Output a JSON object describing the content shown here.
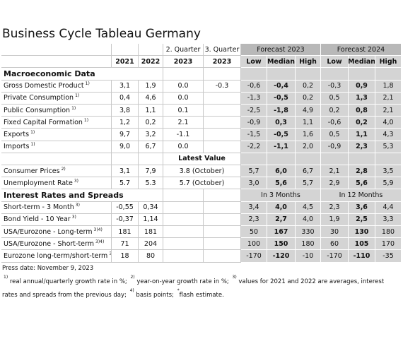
{
  "header": {
    "title": "Business Cycle Tableau Germany"
  },
  "table": {
    "column_groups": [
      "2. Quarter",
      "3. Quarter",
      "Forecast 2023",
      "Forecast 2024"
    ],
    "columns": [
      "2021",
      "2022",
      "2023",
      "2023",
      "Low",
      "Median",
      "High",
      "Low",
      "Median",
      "High"
    ],
    "sections": [
      {
        "title": "Macroeconomic Data",
        "rows": [
          {
            "label": "Gross Domestic Product",
            "note": "1)",
            "values": [
              "3,1",
              "1,9",
              "0.0",
              "-0.3"
            ],
            "forecast": [
              "-0,6",
              "-0,4",
              "0,2",
              "-0,3",
              "0,9",
              "1,8"
            ]
          },
          {
            "label": "Private Consumption",
            "note": "1)",
            "values": [
              "0,4",
              "4,6",
              "0.0",
              null
            ],
            "forecast": [
              "-1,3",
              "-0,5",
              "0,2",
              "0,5",
              "1,3",
              "2,1"
            ]
          },
          {
            "label": "Public Consumption",
            "note": "1)",
            "values": [
              "3,8",
              "1,1",
              "0.1",
              null
            ],
            "forecast": [
              "-2,5",
              "-1,8",
              "4,9",
              "0,2",
              "0,8",
              "2,1"
            ]
          },
          {
            "label": "Fixed Capital Formation",
            "note": "1)",
            "values": [
              "1,2",
              "0,2",
              "2.1",
              null
            ],
            "forecast": [
              "-0,9",
              "0,3",
              "1,1",
              "-0,6",
              "0,2",
              "4,0"
            ]
          },
          {
            "label": "Exports",
            "note": "1)",
            "values": [
              "9,7",
              "3,2",
              "-1.1",
              null
            ],
            "forecast": [
              "-1,5",
              "-0,5",
              "1,6",
              "0,5",
              "1,1",
              "4,3"
            ]
          },
          {
            "label": "Imports",
            "note": "1)",
            "values": [
              "9,0",
              "6,7",
              "0.0",
              null
            ],
            "forecast": [
              "-2,2",
              "-1,1",
              "2,0",
              "-0,9",
              "2,3",
              "5,3"
            ]
          }
        ]
      },
      {
        "title": "Latest Value",
        "rows": [
          {
            "label": "Consumer Prices",
            "note": "2)",
            "values": [
              "3,1",
              "7,9"
            ],
            "latest": "3.8 (October)",
            "forecast": [
              "5,7",
              "6,0",
              "6,7",
              "2,1",
              "2,8",
              "3,5"
            ]
          },
          {
            "label": "Unemployment Rate",
            "note": "3)",
            "values": [
              "5.7",
              "5.3"
            ],
            "latest": "5.7 (October)",
            "forecast": [
              "3,0",
              "5,6",
              "5,7",
              "2,9",
              "5,6",
              "5,9"
            ]
          }
        ]
      },
      {
        "title": "Interest Rates and Spreads",
        "forecast_headers": [
          "In 3 Months",
          "In 12 Months"
        ],
        "rows": [
          {
            "label": "Short-term - 3 Month",
            "note": "3)",
            "values": [
              "-0,55",
              "0,34"
            ],
            "forecast": [
              "3,4",
              "4,0",
              "4,5",
              "2,3",
              "3,6",
              "4,4"
            ]
          },
          {
            "label": "Bond Yield - 10 Year",
            "note": "3)",
            "values": [
              "-0,37",
              "1,14"
            ],
            "forecast": [
              "2,3",
              "2,7",
              "4,0",
              "1,9",
              "2,5",
              "3,3"
            ]
          },
          {
            "label": "USA/Eurozone - Long-term",
            "note": "3)4)",
            "values": [
              "181",
              "181"
            ],
            "forecast": [
              "50",
              "167",
              "330",
              "30",
              "130",
              "180"
            ]
          },
          {
            "label": "USA/Eurozone - Short-term",
            "note": "3)4)",
            "values": [
              "71",
              "204"
            ],
            "forecast": [
              "100",
              "150",
              "180",
              "60",
              "105",
              "170"
            ]
          },
          {
            "label": "Eurozone long-term/short-term",
            "note": "3)",
            "values": [
              "18",
              "80"
            ],
            "forecast": [
              "-170",
              "-120",
              "-10",
              "-170",
              "-110",
              "-35"
            ]
          }
        ]
      }
    ]
  },
  "footer": {
    "press_date": "Press date: November 9, 2023",
    "notes": [
      {
        "sup": "1)",
        "text": " real annual/quarterly growth rate in %; "
      },
      {
        "sup": "2)",
        "text": " year-on-year growth rate in %; "
      },
      {
        "sup": "3)",
        "text": " values for 2021 and 2022 are averages, interest rates and spreads from the previous day; "
      },
      {
        "sup": "4)",
        "text": " basis points; "
      },
      {
        "sup": "*",
        "text": "flash estimate."
      }
    ]
  }
}
